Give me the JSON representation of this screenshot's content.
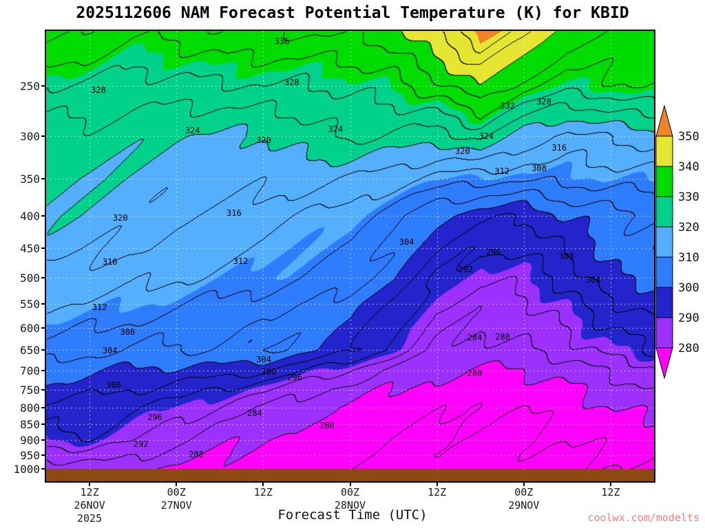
{
  "title": "2025112606 NAM Forecast Potential Temperature (K) for KBID",
  "watermark": {
    "text": "coolwx.com/modelts",
    "color": "#F4807C"
  },
  "xaxis": {
    "label": "Forecast Time (UTC)",
    "ticks": [
      {
        "hour": 6,
        "lines": [
          "12Z",
          "26NOV",
          "2025"
        ]
      },
      {
        "hour": 18,
        "lines": [
          "00Z",
          "27NOV"
        ]
      },
      {
        "hour": 30,
        "lines": [
          "12Z"
        ]
      },
      {
        "hour": 42,
        "lines": [
          "00Z",
          "28NOV"
        ]
      },
      {
        "hour": 54,
        "lines": [
          "12Z"
        ]
      },
      {
        "hour": 66,
        "lines": [
          "00Z",
          "29NOV"
        ]
      },
      {
        "hour": 78,
        "lines": [
          "12Z"
        ]
      }
    ]
  },
  "yaxis": {
    "ticks": [
      250,
      300,
      350,
      400,
      450,
      500,
      550,
      600,
      650,
      700,
      750,
      800,
      850,
      900,
      950,
      1000
    ]
  },
  "colorbar": {
    "labels": [
      "350",
      "340",
      "330",
      "320",
      "310",
      "300",
      "290",
      "280"
    ]
  },
  "colors": {
    "palette": [
      "#FF00FF",
      "#9B30FF",
      "#2424CC",
      "#2E7CFF",
      "#55AFFF",
      "#00D28C",
      "#00DC00",
      "#E6E632",
      "#F08228"
    ],
    "ground": "#8C4A10",
    "contour_line": "#000000",
    "gridline": "#FFFFFF",
    "text": "#111111"
  },
  "chart_data": {
    "type": "heatmap",
    "title": "2025112606 NAM Forecast Potential Temperature (K) for KBID",
    "xlabel": "Forecast Time (UTC)",
    "x_start": "06Z 26NOV 2025",
    "x_hours": [
      0,
      6,
      12,
      18,
      24,
      30,
      36,
      42,
      48,
      54,
      60,
      66,
      72,
      78,
      84
    ],
    "pressure_levels_hPa": [
      200,
      250,
      300,
      350,
      400,
      450,
      500,
      550,
      600,
      650,
      700,
      750,
      800,
      850,
      900,
      950,
      1000
    ],
    "contour_interval_K": 4,
    "shade_levels_K": [
      280,
      290,
      300,
      310,
      320,
      330,
      340,
      350
    ],
    "theta_K": [
      [
        340,
        337,
        334,
        335,
        336,
        336,
        337,
        338,
        340,
        346,
        352,
        347,
        340,
        337,
        335
      ],
      [
        328,
        328,
        326,
        326,
        327,
        328,
        328,
        329,
        330,
        334,
        340,
        334,
        330,
        331,
        332
      ],
      [
        322,
        322,
        321,
        320,
        320,
        320,
        322,
        324,
        323,
        322,
        326,
        318,
        314,
        316,
        318
      ],
      [
        321,
        320,
        319,
        318,
        318,
        317,
        317,
        316,
        314,
        311,
        309,
        308,
        309,
        310,
        311
      ],
      [
        320,
        319,
        318,
        316,
        315,
        314,
        312,
        311,
        306,
        300,
        297,
        296,
        301,
        303,
        304
      ],
      [
        318,
        317,
        316,
        314,
        313,
        312,
        310,
        308,
        303,
        296,
        292,
        293,
        297,
        301,
        304
      ],
      [
        315,
        314,
        313,
        312,
        311,
        310,
        308,
        305,
        300,
        292,
        289,
        290,
        293,
        299,
        301
      ],
      [
        312,
        311,
        310,
        309,
        308,
        306,
        304,
        301,
        296,
        289,
        286,
        287,
        290,
        295,
        298
      ],
      [
        309,
        308,
        307,
        306,
        305,
        304,
        302,
        299,
        293,
        286,
        284,
        285,
        288,
        292,
        295
      ],
      [
        306,
        305,
        304,
        304,
        304,
        304,
        301,
        297,
        291,
        284,
        282,
        283,
        286,
        290,
        293
      ],
      [
        302,
        301,
        300,
        299,
        298,
        296,
        292,
        288,
        283,
        280,
        279,
        280,
        282,
        285,
        287
      ],
      [
        299,
        298,
        296,
        294,
        291,
        289,
        285,
        283,
        280,
        278,
        277,
        278,
        280,
        282,
        284
      ],
      [
        295,
        294,
        292,
        290,
        287,
        284,
        282,
        280,
        278,
        277,
        276,
        277,
        278,
        280,
        281
      ],
      [
        293,
        294,
        290,
        287,
        284,
        282,
        280,
        279,
        277,
        276,
        276,
        276,
        277,
        278,
        279
      ],
      [
        290,
        291,
        288,
        285,
        282,
        280,
        279,
        278,
        276,
        275,
        275,
        275,
        276,
        277,
        278
      ],
      [
        285,
        286,
        284,
        282,
        280,
        279,
        278,
        277,
        276,
        275,
        274,
        275,
        275,
        276,
        277
      ],
      [
        281,
        282,
        281,
        280,
        279,
        278,
        277,
        276,
        275,
        274,
        274,
        274,
        275,
        275,
        276
      ]
    ]
  },
  "contour_labels": [
    {
      "text": "336",
      "fx": 0.388,
      "fy": 0.023
    },
    {
      "text": "328",
      "fx": 0.086,
      "fy": 0.131
    },
    {
      "text": "328",
      "fx": 0.404,
      "fy": 0.115
    },
    {
      "text": "324",
      "fx": 0.241,
      "fy": 0.221
    },
    {
      "text": "324",
      "fx": 0.476,
      "fy": 0.218
    },
    {
      "text": "320",
      "fx": 0.358,
      "fy": 0.243
    },
    {
      "text": "332",
      "fx": 0.759,
      "fy": 0.166
    },
    {
      "text": "328",
      "fx": 0.819,
      "fy": 0.157
    },
    {
      "text": "324",
      "fx": 0.724,
      "fy": 0.234
    },
    {
      "text": "320",
      "fx": 0.685,
      "fy": 0.267
    },
    {
      "text": "312",
      "fx": 0.75,
      "fy": 0.312
    },
    {
      "text": "308",
      "fx": 0.811,
      "fy": 0.305
    },
    {
      "text": "316",
      "fx": 0.844,
      "fy": 0.26
    },
    {
      "text": "320",
      "fx": 0.122,
      "fy": 0.415
    },
    {
      "text": "316",
      "fx": 0.309,
      "fy": 0.405
    },
    {
      "text": "304",
      "fx": 0.593,
      "fy": 0.469
    },
    {
      "text": "296",
      "fx": 0.736,
      "fy": 0.492
    },
    {
      "text": "300",
      "fx": 0.856,
      "fy": 0.501
    },
    {
      "text": "316",
      "fx": 0.105,
      "fy": 0.513
    },
    {
      "text": "312",
      "fx": 0.32,
      "fy": 0.511
    },
    {
      "text": "292",
      "fx": 0.69,
      "fy": 0.53
    },
    {
      "text": "304",
      "fx": 0.9,
      "fy": 0.553
    },
    {
      "text": "312",
      "fx": 0.088,
      "fy": 0.614
    },
    {
      "text": "308",
      "fx": 0.134,
      "fy": 0.669
    },
    {
      "text": "284",
      "fx": 0.705,
      "fy": 0.681
    },
    {
      "text": "288",
      "fx": 0.751,
      "fy": 0.679
    },
    {
      "text": "304",
      "fx": 0.105,
      "fy": 0.71
    },
    {
      "text": "304",
      "fx": 0.358,
      "fy": 0.73
    },
    {
      "text": "300",
      "fx": 0.366,
      "fy": 0.757
    },
    {
      "text": "296",
      "fx": 0.409,
      "fy": 0.77
    },
    {
      "text": "280",
      "fx": 0.705,
      "fy": 0.76
    },
    {
      "text": "300",
      "fx": 0.111,
      "fy": 0.786
    },
    {
      "text": "284",
      "fx": 0.343,
      "fy": 0.849
    },
    {
      "text": "280",
      "fx": 0.462,
      "fy": 0.876
    },
    {
      "text": "296",
      "fx": 0.179,
      "fy": 0.858
    },
    {
      "text": "292",
      "fx": 0.156,
      "fy": 0.918
    },
    {
      "text": "288",
      "fx": 0.247,
      "fy": 0.94
    }
  ]
}
